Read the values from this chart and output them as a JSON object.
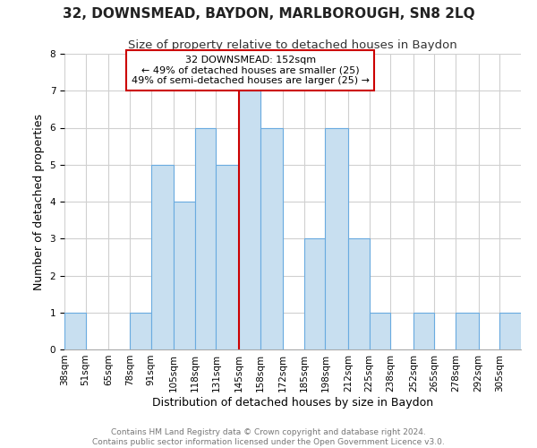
{
  "title": "32, DOWNSMEAD, BAYDON, MARLBOROUGH, SN8 2LQ",
  "subtitle": "Size of property relative to detached houses in Baydon",
  "xlabel": "Distribution of detached houses by size in Baydon",
  "ylabel": "Number of detached properties",
  "bin_labels": [
    "38sqm",
    "51sqm",
    "65sqm",
    "78sqm",
    "91sqm",
    "105sqm",
    "118sqm",
    "131sqm",
    "145sqm",
    "158sqm",
    "172sqm",
    "185sqm",
    "198sqm",
    "212sqm",
    "225sqm",
    "238sqm",
    "252sqm",
    "265sqm",
    "278sqm",
    "292sqm",
    "305sqm"
  ],
  "counts": [
    1,
    0,
    0,
    1,
    5,
    4,
    6,
    5,
    7,
    6,
    0,
    3,
    6,
    3,
    1,
    0,
    1,
    0,
    1,
    0,
    1
  ],
  "bar_color": "#c8dff0",
  "bar_edge_color": "#6aabe0",
  "red_line_index": 8,
  "annotation_title": "32 DOWNSMEAD: 152sqm",
  "annotation_line1": "← 49% of detached houses are smaller (25)",
  "annotation_line2": "49% of semi-detached houses are larger (25) →",
  "annotation_box_color": "#ffffff",
  "annotation_box_edge_color": "#cc0000",
  "ylim": [
    0,
    8
  ],
  "yticks": [
    0,
    1,
    2,
    3,
    4,
    5,
    6,
    7,
    8
  ],
  "grid_color": "#d0d0d0",
  "background_color": "#ffffff",
  "footer_line1": "Contains HM Land Registry data © Crown copyright and database right 2024.",
  "footer_line2": "Contains public sector information licensed under the Open Government Licence v3.0.",
  "title_fontsize": 11,
  "subtitle_fontsize": 9.5,
  "axis_label_fontsize": 9,
  "tick_fontsize": 7.5,
  "footer_fontsize": 6.5
}
